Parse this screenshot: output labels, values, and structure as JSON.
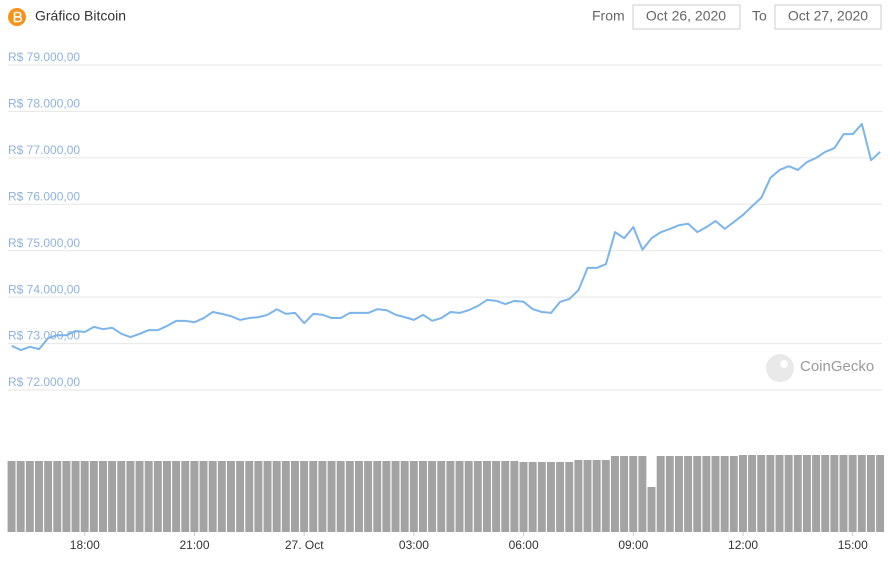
{
  "header": {
    "title": "Gráfico Bitcoin",
    "from_label": "From",
    "from_date": "Oct 26, 2020",
    "to_label": "To",
    "to_date": "Oct 27, 2020"
  },
  "watermark": "CoinGecko",
  "chart_data": [
    {
      "type": "line",
      "color": "#7cb5ec",
      "x": [
        16,
        16.25,
        16.5,
        16.75,
        17,
        17.25,
        17.5,
        17.75,
        18,
        18.25,
        18.5,
        18.75,
        19,
        19.25,
        19.5,
        19.75,
        20,
        20.25,
        20.5,
        20.75,
        21,
        21.25,
        21.5,
        21.75,
        22,
        22.25,
        22.5,
        22.75,
        23,
        23.25,
        23.5,
        23.75,
        24,
        24.25,
        24.5,
        24.75,
        25,
        25.25,
        25.5,
        25.75,
        26,
        26.25,
        26.5,
        26.75,
        27,
        27.25,
        27.5,
        27.75,
        28,
        28.25,
        28.5,
        28.75,
        29,
        29.25,
        29.5,
        29.75,
        30,
        30.25,
        30.5,
        30.75,
        31,
        31.25,
        31.5,
        31.75,
        32,
        32.25,
        32.5,
        32.75,
        33,
        33.25,
        33.5,
        33.75,
        34,
        34.25,
        34.5,
        34.75,
        35,
        35.25,
        35.5,
        35.75,
        36,
        36.25,
        36.5,
        36.75,
        37,
        37.25,
        37.5,
        37.75,
        38,
        38.25,
        38.5,
        38.75,
        39,
        39.25,
        39.5,
        39.75
      ],
      "values": [
        72950,
        72860,
        72930,
        72880,
        73120,
        73180,
        73180,
        73270,
        73250,
        73360,
        73310,
        73340,
        73210,
        73140,
        73210,
        73290,
        73290,
        73380,
        73490,
        73490,
        73460,
        73550,
        73680,
        73640,
        73590,
        73510,
        73550,
        73570,
        73620,
        73740,
        73640,
        73660,
        73440,
        73640,
        73620,
        73550,
        73550,
        73660,
        73660,
        73660,
        73740,
        73720,
        73620,
        73570,
        73510,
        73620,
        73490,
        73550,
        73680,
        73660,
        73720,
        73810,
        73940,
        73920,
        73850,
        73920,
        73900,
        73740,
        73680,
        73660,
        73900,
        73960,
        74150,
        74630,
        74630,
        74710,
        75400,
        75270,
        75510,
        75020,
        75270,
        75400,
        75470,
        75550,
        75580,
        75400,
        75510,
        75640,
        75470,
        75620,
        75770,
        75960,
        76140,
        76570,
        76740,
        76820,
        76740,
        76910,
        77000,
        77130,
        77210,
        77510,
        77510,
        77730,
        76950,
        77130
      ],
      "xlim": [
        15.9,
        39.8
      ],
      "ylim": [
        72000,
        79000
      ],
      "yticks": [
        {
          "value": 72000,
          "label": "R$ 72.000,00"
        },
        {
          "value": 73000,
          "label": "R$ 73.000,00"
        },
        {
          "value": 74000,
          "label": "R$ 74.000,00"
        },
        {
          "value": 75000,
          "label": "R$ 75.000,00"
        },
        {
          "value": 76000,
          "label": "R$ 76.000,00"
        },
        {
          "value": 77000,
          "label": "R$ 77.000,00"
        },
        {
          "value": 78000,
          "label": "R$ 78.000,00"
        },
        {
          "value": 79000,
          "label": "R$ 79.000,00"
        }
      ],
      "grid": true
    },
    {
      "type": "bar",
      "color": "#a3a3a3",
      "x": [
        16,
        16.25,
        16.5,
        16.75,
        17,
        17.25,
        17.5,
        17.75,
        18,
        18.25,
        18.5,
        18.75,
        19,
        19.25,
        19.5,
        19.75,
        20,
        20.25,
        20.5,
        20.75,
        21,
        21.25,
        21.5,
        21.75,
        22,
        22.25,
        22.5,
        22.75,
        23,
        23.25,
        23.5,
        23.75,
        24,
        24.25,
        24.5,
        24.75,
        25,
        25.25,
        25.5,
        25.75,
        26,
        26.25,
        26.5,
        26.75,
        27,
        27.25,
        27.5,
        27.75,
        28,
        28.25,
        28.5,
        28.75,
        29,
        29.25,
        29.5,
        29.75,
        30,
        30.25,
        30.5,
        30.75,
        31,
        31.25,
        31.5,
        31.75,
        32,
        32.25,
        32.5,
        32.75,
        33,
        33.25,
        33.5,
        33.75,
        34,
        34.25,
        34.5,
        34.75,
        35,
        35.25,
        35.5,
        35.75,
        36,
        36.25,
        36.5,
        36.75,
        37,
        37.25,
        37.5,
        37.75,
        38,
        38.25,
        38.5,
        38.75,
        39,
        39.25,
        39.5,
        39.75
      ],
      "values": [
        71,
        71,
        71,
        71,
        71,
        71,
        71,
        71,
        71,
        71,
        71,
        71,
        71,
        71,
        71,
        71,
        71,
        71,
        71,
        71,
        71,
        71,
        71,
        71,
        71,
        71,
        71,
        71,
        71,
        71,
        71,
        71,
        71,
        71,
        71,
        71,
        71,
        71,
        71,
        71,
        71,
        71,
        71,
        71,
        71,
        71,
        71,
        71,
        71,
        71,
        71,
        71,
        71,
        71,
        71,
        71,
        70,
        70,
        70,
        70,
        70,
        70,
        72,
        72,
        72,
        72,
        76,
        76,
        76,
        76,
        45,
        76,
        76,
        76,
        76,
        76,
        76,
        76,
        76,
        76,
        77,
        77,
        77,
        77,
        77,
        77,
        77,
        77,
        77,
        77,
        77,
        77,
        77,
        77,
        77,
        77
      ],
      "xlim": [
        15.9,
        39.8
      ],
      "ylim": [
        0,
        80
      ],
      "xticks": [
        {
          "value": 18,
          "label": "18:00"
        },
        {
          "value": 21,
          "label": "21:00"
        },
        {
          "value": 24,
          "label": "27. Oct"
        },
        {
          "value": 27,
          "label": "03:00"
        },
        {
          "value": 30,
          "label": "06:00"
        },
        {
          "value": 33,
          "label": "09:00"
        },
        {
          "value": 36,
          "label": "12:00"
        },
        {
          "value": 39,
          "label": "15:00"
        }
      ]
    }
  ]
}
